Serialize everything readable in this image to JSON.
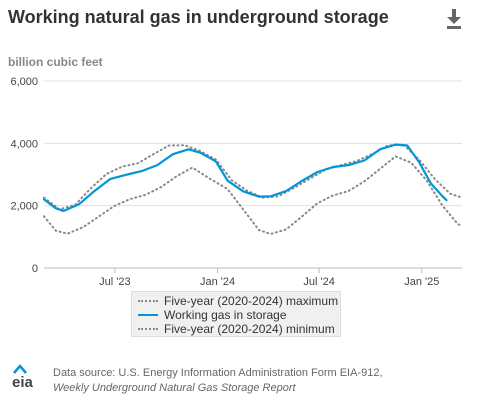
{
  "header": {
    "title": "Working natural gas in underground storage",
    "download_icon": "download-icon"
  },
  "unit_label": "billion cubic feet",
  "legend": {
    "items": [
      "Five-year (2020-2024) maximum",
      "Working gas in storage",
      "Five-year (2020-2024) minimum"
    ]
  },
  "footer": {
    "logo_text": "eia",
    "source_line": "Data source: U.S. Energy Information Administration Form EIA-912,",
    "report_line": "Weekly Underground Natural Gas Storage Report"
  },
  "colors": {
    "storage": "#0096d7",
    "range": "#888888",
    "grid": "#e0e0e0",
    "text": "#333333"
  },
  "chart_data": {
    "type": "line",
    "title": "Working natural gas in underground storage",
    "ylabel": "billion cubic feet",
    "ylim": [
      0,
      6000
    ],
    "yticks": [
      0,
      2000,
      4000,
      6000
    ],
    "ytick_labels": [
      "0",
      "2,000",
      "4,000",
      "6,000"
    ],
    "xlim": [
      "2023-02-24",
      "2025-03-14"
    ],
    "xticks": [
      "2023-07-01",
      "2024-01-01",
      "2024-07-01",
      "2025-01-01"
    ],
    "xtick_labels": [
      "Jul '23",
      "Jan '24",
      "Jul '24",
      "Jan '25"
    ],
    "grid": true,
    "legend_position": "bottom",
    "series": [
      {
        "name": "Five-year (2020-2024) maximum",
        "style": "dotted",
        "color": "#888888",
        "points": [
          [
            "2023-02-24",
            2260
          ],
          [
            "2023-03-24",
            1880
          ],
          [
            "2023-04-21",
            2030
          ],
          [
            "2023-05-19",
            2560
          ],
          [
            "2023-06-16",
            3020
          ],
          [
            "2023-07-14",
            3250
          ],
          [
            "2023-08-11",
            3360
          ],
          [
            "2023-09-08",
            3650
          ],
          [
            "2023-10-06",
            3930
          ],
          [
            "2023-11-03",
            3940
          ],
          [
            "2023-12-01",
            3750
          ],
          [
            "2023-12-29",
            3480
          ],
          [
            "2024-01-26",
            2820
          ],
          [
            "2024-02-23",
            2480
          ],
          [
            "2024-03-22",
            2260
          ],
          [
            "2024-04-19",
            2300
          ],
          [
            "2024-05-17",
            2570
          ],
          [
            "2024-06-14",
            2860
          ],
          [
            "2024-07-12",
            3150
          ],
          [
            "2024-08-09",
            3300
          ],
          [
            "2024-09-06",
            3430
          ],
          [
            "2024-10-04",
            3650
          ],
          [
            "2024-11-01",
            3930
          ],
          [
            "2024-11-29",
            3960
          ],
          [
            "2024-12-27",
            3480
          ],
          [
            "2025-01-24",
            2860
          ],
          [
            "2025-02-21",
            2380
          ],
          [
            "2025-03-14",
            2260
          ]
        ]
      },
      {
        "name": "Working gas in storage",
        "style": "solid",
        "color": "#0096d7",
        "points": [
          [
            "2023-02-24",
            2200
          ],
          [
            "2023-03-17",
            1920
          ],
          [
            "2023-03-31",
            1830
          ],
          [
            "2023-04-28",
            2050
          ],
          [
            "2023-05-26",
            2480
          ],
          [
            "2023-06-23",
            2860
          ],
          [
            "2023-07-21",
            2990
          ],
          [
            "2023-08-18",
            3110
          ],
          [
            "2023-09-15",
            3300
          ],
          [
            "2023-10-13",
            3650
          ],
          [
            "2023-11-10",
            3810
          ],
          [
            "2023-12-01",
            3700
          ],
          [
            "2023-12-29",
            3420
          ],
          [
            "2024-01-19",
            2800
          ],
          [
            "2024-02-16",
            2460
          ],
          [
            "2024-03-15",
            2290
          ],
          [
            "2024-04-05",
            2300
          ],
          [
            "2024-05-03",
            2470
          ],
          [
            "2024-05-31",
            2790
          ],
          [
            "2024-06-28",
            3080
          ],
          [
            "2024-07-26",
            3240
          ],
          [
            "2024-08-23",
            3300
          ],
          [
            "2024-09-20",
            3450
          ],
          [
            "2024-10-18",
            3810
          ],
          [
            "2024-11-15",
            3960
          ],
          [
            "2024-12-06",
            3930
          ],
          [
            "2024-12-27",
            3400
          ],
          [
            "2025-01-17",
            2720
          ],
          [
            "2025-02-07",
            2300
          ],
          [
            "2025-02-14",
            2180
          ]
        ]
      },
      {
        "name": "Five-year (2020-2024) minimum",
        "style": "dotted",
        "color": "#888888",
        "points": [
          [
            "2023-02-24",
            1660
          ],
          [
            "2023-03-17",
            1200
          ],
          [
            "2023-04-07",
            1100
          ],
          [
            "2023-05-05",
            1310
          ],
          [
            "2023-06-02",
            1650
          ],
          [
            "2023-06-30",
            1990
          ],
          [
            "2023-07-28",
            2210
          ],
          [
            "2023-08-25",
            2350
          ],
          [
            "2023-09-22",
            2600
          ],
          [
            "2023-10-20",
            2950
          ],
          [
            "2023-11-17",
            3220
          ],
          [
            "2023-12-15",
            2900
          ],
          [
            "2024-01-19",
            2530
          ],
          [
            "2024-02-16",
            1880
          ],
          [
            "2024-03-15",
            1220
          ],
          [
            "2024-04-05",
            1090
          ],
          [
            "2024-05-03",
            1240
          ],
          [
            "2024-05-31",
            1650
          ],
          [
            "2024-06-28",
            2080
          ],
          [
            "2024-07-26",
            2330
          ],
          [
            "2024-08-23",
            2470
          ],
          [
            "2024-09-20",
            2780
          ],
          [
            "2024-10-18",
            3180
          ],
          [
            "2024-11-15",
            3580
          ],
          [
            "2024-12-13",
            3380
          ],
          [
            "2025-01-10",
            2800
          ],
          [
            "2025-02-07",
            2000
          ],
          [
            "2025-03-07",
            1400
          ],
          [
            "2025-03-14",
            1380
          ]
        ]
      }
    ]
  }
}
